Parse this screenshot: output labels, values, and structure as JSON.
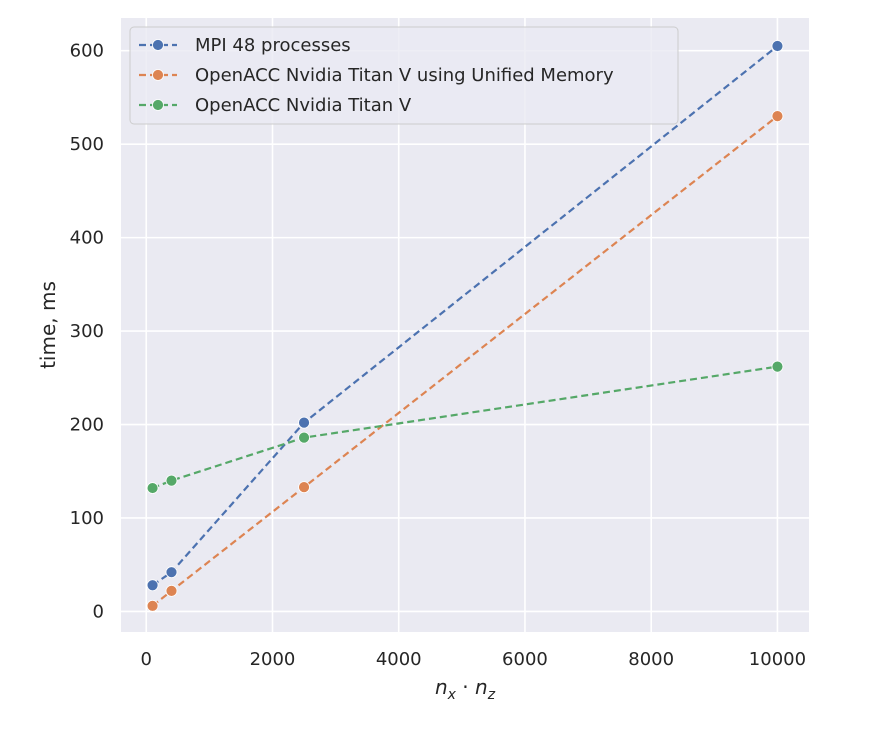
{
  "chart_data": {
    "type": "line",
    "title": "",
    "xlabel": {
      "base1": "n",
      "sub1": "x",
      "op": " · ",
      "base2": "n",
      "sub2": "z"
    },
    "ylabel": "time, ms",
    "xlim": [
      -400,
      10500
    ],
    "ylim": [
      -22,
      635
    ],
    "x_ticks": [
      0,
      2000,
      4000,
      6000,
      8000,
      10000
    ],
    "x_tick_labels": [
      "0",
      "2000",
      "4000",
      "6000",
      "8000",
      "10000"
    ],
    "y_ticks": [
      0,
      100,
      200,
      300,
      400,
      500,
      600
    ],
    "y_tick_labels": [
      "0",
      "100",
      "200",
      "300",
      "400",
      "500",
      "600"
    ],
    "grid": true,
    "legend_position": "top-left",
    "line_style": "dashed",
    "marker": "circle",
    "x": [
      100,
      400,
      2500,
      10000
    ],
    "series": [
      {
        "name": "MPI 48 processes",
        "color": "#4c72b0",
        "values": [
          28,
          42,
          202,
          605
        ]
      },
      {
        "name": "OpenACC Nvidia Titan V using Unified Memory",
        "color": "#dd8452",
        "values": [
          6,
          22,
          133,
          530
        ]
      },
      {
        "name": "OpenACC Nvidia Titan V",
        "color": "#55a868",
        "values": [
          132,
          140,
          186,
          262
        ]
      }
    ]
  }
}
